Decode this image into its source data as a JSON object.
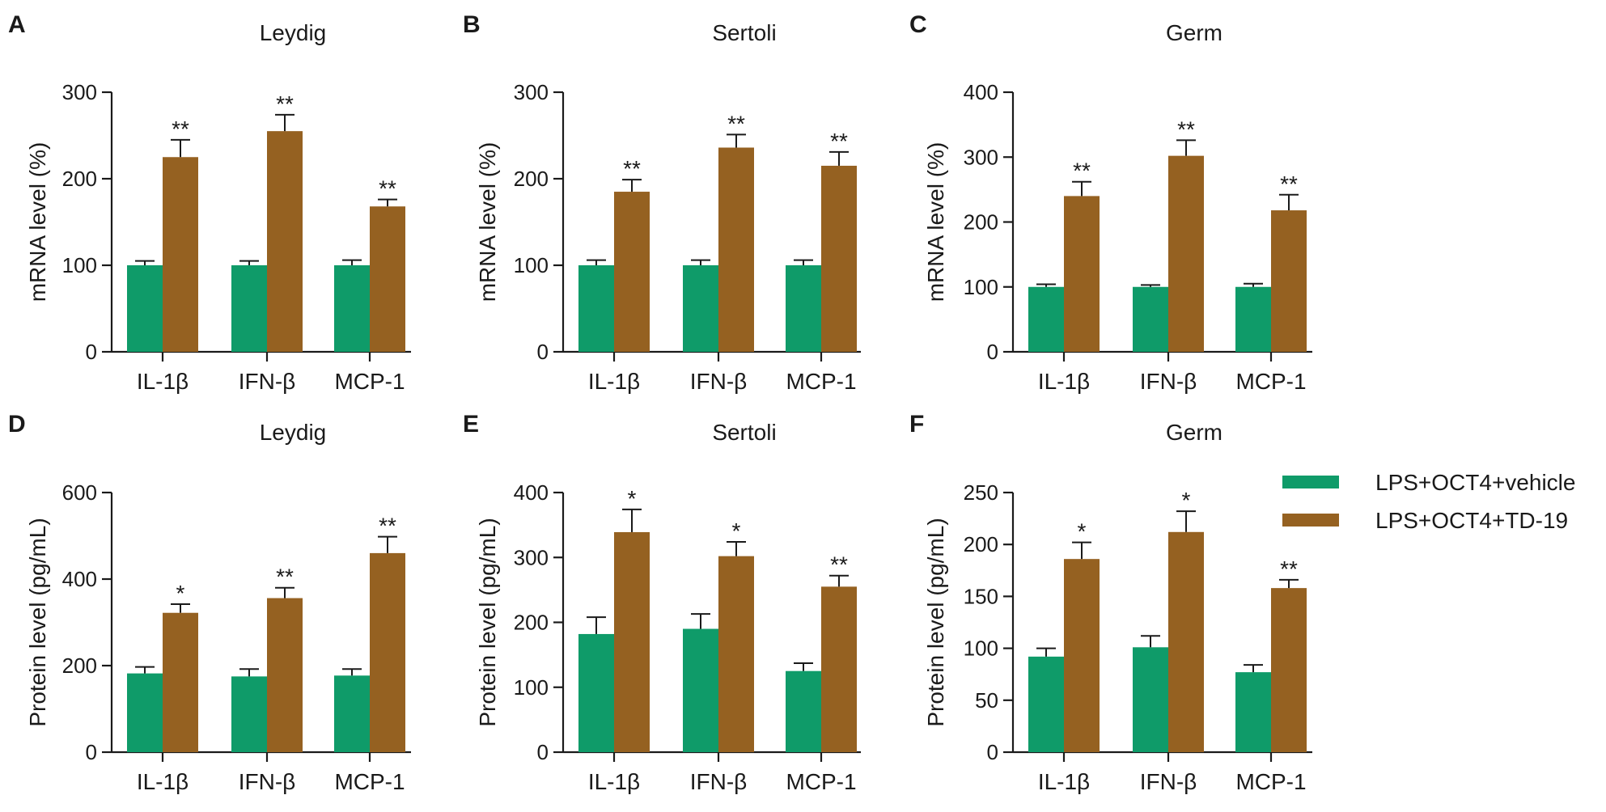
{
  "colors": {
    "vehicle": "#0f9b69",
    "td19": "#956121",
    "axis": "#1a1a1a"
  },
  "legend": {
    "items": [
      {
        "label": "LPS+OCT4+vehicle",
        "color": "#0f9b69"
      },
      {
        "label": "LPS+OCT4+TD-19",
        "color": "#956121"
      }
    ]
  },
  "chart_data": [
    {
      "panel": "A",
      "type": "bar",
      "title": "Leydig",
      "ylabel": "mRNA level (%)",
      "categories": [
        "IL-1β",
        "IFN-β",
        "MCP-1"
      ],
      "ylim": [
        0,
        300
      ],
      "yticks": [
        0,
        100,
        200,
        300
      ],
      "series": [
        {
          "name": "LPS+OCT4+vehicle",
          "values": [
            100,
            100,
            100
          ],
          "errors": [
            5,
            5,
            6
          ],
          "sig": [
            "",
            "",
            ""
          ]
        },
        {
          "name": "LPS+OCT4+TD-19",
          "values": [
            225,
            255,
            168
          ],
          "errors": [
            20,
            19,
            8
          ],
          "sig": [
            "**",
            "**",
            "**"
          ]
        }
      ]
    },
    {
      "panel": "B",
      "type": "bar",
      "title": "Sertoli",
      "ylabel": "mRNA level (%)",
      "categories": [
        "IL-1β",
        "IFN-β",
        "MCP-1"
      ],
      "ylim": [
        0,
        300
      ],
      "yticks": [
        0,
        100,
        200,
        300
      ],
      "series": [
        {
          "name": "LPS+OCT4+vehicle",
          "values": [
            100,
            100,
            100
          ],
          "errors": [
            6,
            6,
            6
          ],
          "sig": [
            "",
            "",
            ""
          ]
        },
        {
          "name": "LPS+OCT4+TD-19",
          "values": [
            185,
            236,
            215
          ],
          "errors": [
            14,
            15,
            16
          ],
          "sig": [
            "**",
            "**",
            "**"
          ]
        }
      ]
    },
    {
      "panel": "C",
      "type": "bar",
      "title": "Germ",
      "ylabel": "mRNA level (%)",
      "categories": [
        "IL-1β",
        "IFN-β",
        "MCP-1"
      ],
      "ylim": [
        0,
        400
      ],
      "yticks": [
        0,
        100,
        200,
        300,
        400
      ],
      "series": [
        {
          "name": "LPS+OCT4+vehicle",
          "values": [
            100,
            100,
            100
          ],
          "errors": [
            4,
            3,
            5
          ],
          "sig": [
            "",
            "",
            ""
          ]
        },
        {
          "name": "LPS+OCT4+TD-19",
          "values": [
            240,
            302,
            218
          ],
          "errors": [
            22,
            24,
            24
          ],
          "sig": [
            "**",
            "**",
            "**"
          ]
        }
      ]
    },
    {
      "panel": "D",
      "type": "bar",
      "title": "Leydig",
      "ylabel": "Protein level (pg/mL)",
      "categories": [
        "IL-1β",
        "IFN-β",
        "MCP-1"
      ],
      "ylim": [
        0,
        600
      ],
      "yticks": [
        0,
        200,
        400,
        600
      ],
      "series": [
        {
          "name": "LPS+OCT4+vehicle",
          "values": [
            182,
            175,
            177
          ],
          "errors": [
            15,
            17,
            15
          ],
          "sig": [
            "",
            "",
            ""
          ]
        },
        {
          "name": "LPS+OCT4+TD-19",
          "values": [
            322,
            356,
            460
          ],
          "errors": [
            20,
            24,
            38
          ],
          "sig": [
            "*",
            "**",
            "**"
          ]
        }
      ]
    },
    {
      "panel": "E",
      "type": "bar",
      "title": "Sertoli",
      "ylabel": "Protein level (pg/mL)",
      "categories": [
        "IL-1β",
        "IFN-β",
        "MCP-1"
      ],
      "ylim": [
        0,
        400
      ],
      "yticks": [
        0,
        100,
        200,
        300,
        400
      ],
      "series": [
        {
          "name": "LPS+OCT4+vehicle",
          "values": [
            182,
            190,
            125
          ],
          "errors": [
            26,
            23,
            12
          ],
          "sig": [
            "",
            "",
            ""
          ]
        },
        {
          "name": "LPS+OCT4+TD-19",
          "values": [
            339,
            302,
            255
          ],
          "errors": [
            35,
            22,
            17
          ],
          "sig": [
            "*",
            "*",
            "**"
          ]
        }
      ]
    },
    {
      "panel": "F",
      "type": "bar",
      "title": "Germ",
      "ylabel": "Protein level (pg/mL)",
      "categories": [
        "IL-1β",
        "IFN-β",
        "MCP-1"
      ],
      "ylim": [
        0,
        250
      ],
      "yticks": [
        0,
        50,
        100,
        150,
        200,
        250
      ],
      "series": [
        {
          "name": "LPS+OCT4+vehicle",
          "values": [
            92,
            101,
            77
          ],
          "errors": [
            8,
            11,
            7
          ],
          "sig": [
            "",
            "",
            ""
          ]
        },
        {
          "name": "LPS+OCT4+TD-19",
          "values": [
            186,
            212,
            158
          ],
          "errors": [
            16,
            20,
            8
          ],
          "sig": [
            "*",
            "*",
            "**"
          ]
        }
      ]
    }
  ]
}
